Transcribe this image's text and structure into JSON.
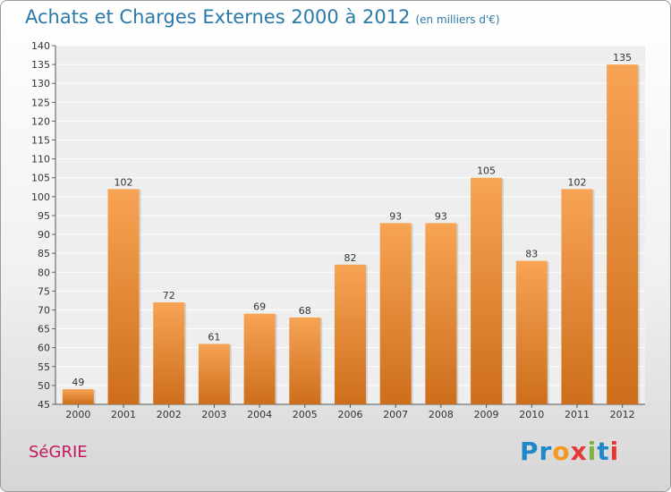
{
  "header": {
    "title": "Achats et Charges Externes 2000 à 2012",
    "subtitle": "(en milliers d'€)"
  },
  "footer": {
    "commune": "SéGRIE",
    "brand_letters": [
      {
        "ch": "P",
        "color": "#1f88c9"
      },
      {
        "ch": "r",
        "color": "#1f88c9"
      },
      {
        "ch": "o",
        "color": "#f29a1f"
      },
      {
        "ch": "x",
        "color": "#e53935"
      },
      {
        "ch": "i",
        "color": "#7cb342"
      },
      {
        "ch": "t",
        "color": "#1f88c9"
      },
      {
        "ch": "i",
        "color": "#e53935"
      }
    ]
  },
  "chart_data": {
    "type": "bar",
    "categories": [
      "2000",
      "2001",
      "2002",
      "2003",
      "2004",
      "2005",
      "2006",
      "2007",
      "2008",
      "2009",
      "2010",
      "2011",
      "2012"
    ],
    "values": [
      49,
      102,
      72,
      61,
      69,
      68,
      82,
      93,
      93,
      105,
      83,
      102,
      135
    ],
    "ylim": [
      45,
      140
    ],
    "y_ticks": [
      45,
      50,
      55,
      60,
      65,
      70,
      75,
      80,
      85,
      90,
      95,
      100,
      105,
      110,
      115,
      120,
      125,
      130,
      135,
      140
    ],
    "grid": true,
    "bar_color_top": "#f7a454",
    "bar_color_bottom": "#cd6e1c",
    "data_labels": true
  }
}
